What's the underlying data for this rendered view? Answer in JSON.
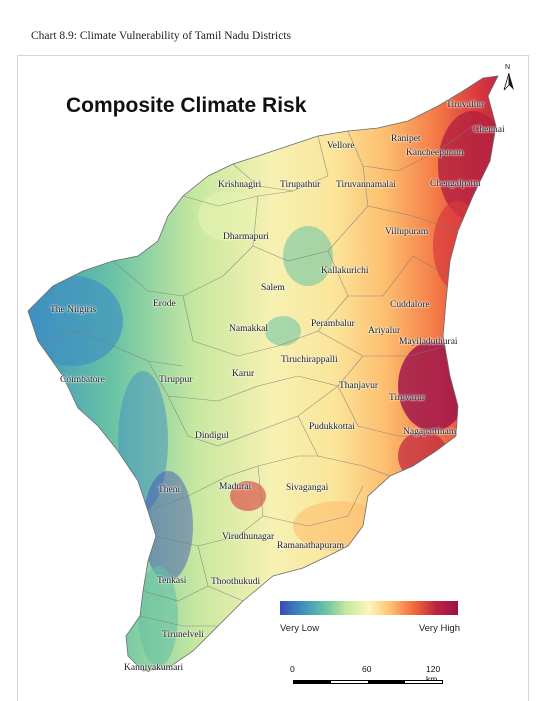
{
  "caption": "Chart 8.9: Climate Vulnerability of Tamil Nadu Districts",
  "map_title": "Composite Climate Risk",
  "north_letter": "N",
  "legend": {
    "low_label": "Very Low",
    "high_label": "Very High",
    "colors": [
      "#3b4bb4",
      "#3e8fc1",
      "#66c2a5",
      "#c7e8a0",
      "#fbf7b8",
      "#fdbe6f",
      "#f26b3a",
      "#c1233f",
      "#9c0f4b"
    ]
  },
  "scale": {
    "ticks": [
      "0",
      "60",
      "120 km"
    ]
  },
  "districts": [
    {
      "name": "Tiruvallur",
      "risk": "high"
    },
    {
      "name": "Chennai",
      "risk": "very high"
    },
    {
      "name": "Ranipet",
      "risk": "high"
    },
    {
      "name": "Vellore",
      "risk": "moderate"
    },
    {
      "name": "Kancheepuram",
      "risk": "very high"
    },
    {
      "name": "Chengalpattu",
      "risk": "very high"
    },
    {
      "name": "Krishnagiri",
      "risk": "low"
    },
    {
      "name": "Tirupathur",
      "risk": "moderate"
    },
    {
      "name": "Tiruvannamalai",
      "risk": "moderate"
    },
    {
      "name": "Dharmapuri",
      "risk": "moderate"
    },
    {
      "name": "Villupuram",
      "risk": "high"
    },
    {
      "name": "Kallakurichi",
      "risk": "moderate"
    },
    {
      "name": "Salem",
      "risk": "moderate"
    },
    {
      "name": "The Nilgiris",
      "risk": "low"
    },
    {
      "name": "Erode",
      "risk": "low"
    },
    {
      "name": "Cuddalore",
      "risk": "very high"
    },
    {
      "name": "Namakkal",
      "risk": "moderate"
    },
    {
      "name": "Perambalur",
      "risk": "moderate"
    },
    {
      "name": "Ariyalur",
      "risk": "high"
    },
    {
      "name": "Mayiladuthurai",
      "risk": "very high"
    },
    {
      "name": "Tiruchirappalli",
      "risk": "moderate"
    },
    {
      "name": "Coimbatore",
      "risk": "low"
    },
    {
      "name": "Tiruppur",
      "risk": "moderate"
    },
    {
      "name": "Karur",
      "risk": "moderate"
    },
    {
      "name": "Thanjavur",
      "risk": "high"
    },
    {
      "name": "Tiruvarur",
      "risk": "very high"
    },
    {
      "name": "Pudukkottai",
      "risk": "high"
    },
    {
      "name": "Nagapattinam",
      "risk": "very high"
    },
    {
      "name": "Dindigul",
      "risk": "low"
    },
    {
      "name": "Theni",
      "risk": "low"
    },
    {
      "name": "Madurai",
      "risk": "moderate"
    },
    {
      "name": "Sivagangai",
      "risk": "high"
    },
    {
      "name": "Virudhunagar",
      "risk": "moderate"
    },
    {
      "name": "Ramanathapuram",
      "risk": "high"
    },
    {
      "name": "Tenkasi",
      "risk": "low"
    },
    {
      "name": "Thoothukudi",
      "risk": "moderate"
    },
    {
      "name": "Tirunelveli",
      "risk": "low"
    },
    {
      "name": "Kanniyakumari",
      "risk": "low"
    }
  ]
}
